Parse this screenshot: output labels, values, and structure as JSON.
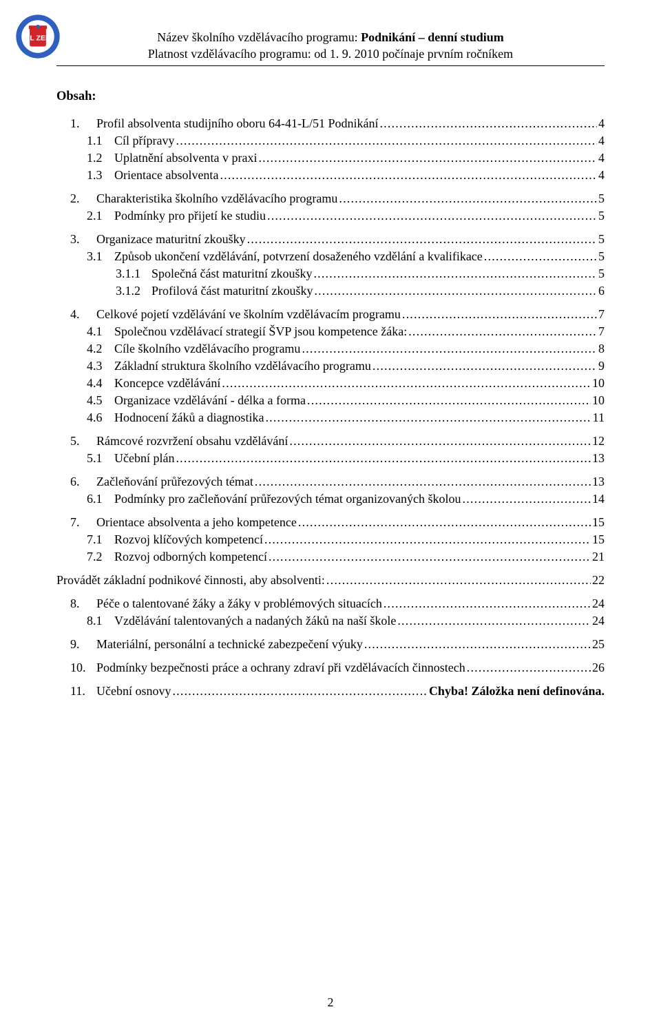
{
  "header": {
    "line1_prefix": "Název školního vzdělávacího programu: ",
    "line1_bold": "Podnikání – denní studium",
    "line2": "Platnost vzdělávacího programu: od 1. 9. 2010 počínaje prvním ročníkem"
  },
  "logo": {
    "colors": {
      "ring": "#2f5fbf",
      "red": "#d1232a",
      "white": "#ffffff",
      "letters": "#ffffff"
    }
  },
  "obsah_label": "Obsah:",
  "toc": [
    {
      "level": 1,
      "num": "1.",
      "title": "Profil absolventa studijního oboru 64-41-L/51 Podnikání",
      "page": "4"
    },
    {
      "level": 2,
      "num": "1.1",
      "title": "Cíl přípravy",
      "page": "4"
    },
    {
      "level": 2,
      "num": "1.2",
      "title": "Uplatnění absolventa v praxi",
      "page": "4"
    },
    {
      "level": 2,
      "num": "1.3",
      "title": "Orientace absolventa",
      "page": "4"
    },
    {
      "level": 1,
      "num": "2.",
      "title": "Charakteristika školního vzdělávacího programu",
      "page": "5"
    },
    {
      "level": 2,
      "num": "2.1",
      "title": "Podmínky pro přijetí ke studiu",
      "page": "5"
    },
    {
      "level": 1,
      "num": "3.",
      "title": "Organizace maturitní zkoušky",
      "page": "5"
    },
    {
      "level": 2,
      "num": "3.1",
      "title": "Způsob ukončení vzdělávání, potvrzení dosaženého vzdělání a kvalifikace",
      "page": "5"
    },
    {
      "level": 3,
      "num": "3.1.1",
      "title": "Společná část maturitní zkoušky",
      "page": "5"
    },
    {
      "level": 3,
      "num": "3.1.2",
      "title": "Profilová část maturitní zkoušky",
      "page": "6"
    },
    {
      "level": 1,
      "num": "4.",
      "title": "Celkové pojetí vzdělávání ve školním vzdělávacím programu",
      "page": "7"
    },
    {
      "level": 2,
      "num": "4.1",
      "title": "Společnou vzdělávací strategií ŠVP jsou kompetence žáka:",
      "page": "7"
    },
    {
      "level": 2,
      "num": "4.2",
      "title": "Cíle školního vzdělávacího programu",
      "page": "8"
    },
    {
      "level": 2,
      "num": "4.3",
      "title": "Základní struktura školního vzdělávacího programu",
      "page": "9"
    },
    {
      "level": 2,
      "num": "4.4",
      "title": "Koncepce vzdělávání",
      "page": "10"
    },
    {
      "level": 2,
      "num": "4.5",
      "title": "Organizace vzdělávání - délka a forma",
      "page": "10"
    },
    {
      "level": 2,
      "num": "4.6",
      "title": "Hodnocení žáků a diagnostika",
      "page": "11"
    },
    {
      "level": 1,
      "num": "5.",
      "title": "Rámcové rozvržení obsahu vzdělávání",
      "page": "12"
    },
    {
      "level": 2,
      "num": "5.1",
      "title": "Učební plán",
      "page": "13"
    },
    {
      "level": 1,
      "num": "6.",
      "title": "Začleňování průřezových témat",
      "page": "13"
    },
    {
      "level": 2,
      "num": "6.1",
      "title": "Podmínky pro začleňování průřezových témat organizovaných školou",
      "page": "14"
    },
    {
      "level": 1,
      "num": "7.",
      "title": "Orientace absolventa a jeho kompetence",
      "page": "15"
    },
    {
      "level": 2,
      "num": "7.1",
      "title": "Rozvoj klíčových kompetencí",
      "page": "15"
    },
    {
      "level": 2,
      "num": "7.2",
      "title": "Rozvoj odborných kompetencí",
      "page": "21"
    },
    {
      "level": 0,
      "num": "",
      "title": "Provádět základní podnikové činnosti, aby absolventi:",
      "page": "22"
    },
    {
      "level": 1,
      "num": "8.",
      "title": "Péče o talentované žáky a žáky v problémových situacích",
      "page": "24"
    },
    {
      "level": 2,
      "num": "8.1",
      "title": "Vzdělávání  talentovaných a nadaných žáků na naší škole",
      "page": "24"
    },
    {
      "level": 1,
      "num": "9.",
      "title": "Materiální, personální a technické zabezpečení výuky",
      "page": "25"
    },
    {
      "level": 1,
      "num": "10.",
      "title": "Podmínky bezpečnosti práce a ochrany zdraví při vzdělávacích činnostech",
      "page": "26"
    },
    {
      "level": 1,
      "num": "11.",
      "title": "Učební osnovy",
      "page": "",
      "error": "Chyba! Záložka není definována."
    }
  ],
  "page_number": "2"
}
